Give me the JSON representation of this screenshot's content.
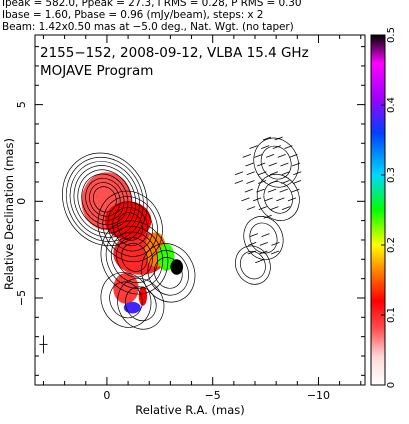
{
  "header": {
    "line1": "Ipeak = 582.0, Ppeak = 27.3, I RMS = 0.28, P RMS = 0.30",
    "line2": "Ibase = 1.60, Pbase = 0.96 (mJy/beam), steps: x 2",
    "line3": "Beam: 1.42x0.50 mas at −5.0 deg., Nat. Wgt. (no taper)"
  },
  "chart_data": {
    "type": "heatmap",
    "title": "2155−152, 2008-09-12, VLBA 15.4 GHz",
    "subtitle": "MOJAVE Program",
    "xlabel": "Relative R.A. (mas)",
    "ylabel": "Relative Declination (mas)",
    "xlim": [
      3.4,
      -12.2
    ],
    "ylim": [
      -9.5,
      8.6
    ],
    "x_ticks": [
      0,
      -5,
      -10
    ],
    "x_tick_labels": [
      "0",
      "−5",
      "−10"
    ],
    "y_ticks": [
      -5,
      0,
      5
    ],
    "y_tick_labels": [
      "−5",
      "0",
      "5"
    ],
    "colorbar": {
      "range": [
        0,
        0.5
      ],
      "ticks": [
        0,
        0.1,
        0.2,
        0.3,
        0.4,
        0.5
      ],
      "tick_labels": [
        "0",
        "0.1",
        "0.2",
        "0.3",
        "0.4",
        "0.5"
      ],
      "stops": [
        {
          "v": 0.0,
          "color": "#ffffff"
        },
        {
          "v": 0.04,
          "color": "#ffd8d8"
        },
        {
          "v": 0.08,
          "color": "#ff5050"
        },
        {
          "v": 0.12,
          "color": "#ff0000"
        },
        {
          "v": 0.16,
          "color": "#ff7a00"
        },
        {
          "v": 0.2,
          "color": "#ffff00"
        },
        {
          "v": 0.25,
          "color": "#00ff00"
        },
        {
          "v": 0.3,
          "color": "#00d8ff"
        },
        {
          "v": 0.36,
          "color": "#0040ff"
        },
        {
          "v": 0.41,
          "color": "#a000ff"
        },
        {
          "v": 0.46,
          "color": "#ff00ff"
        },
        {
          "v": 0.5,
          "color": "#000000"
        }
      ]
    },
    "emission_components": [
      {
        "x": 0.1,
        "y": 0.1,
        "flux": 1.0
      },
      {
        "x": -1.1,
        "y": -1.3,
        "flux": 0.5
      },
      {
        "x": -1.3,
        "y": -2.9,
        "flux": 0.55
      },
      {
        "x": -2.9,
        "y": -3.7,
        "flux": 0.3
      },
      {
        "x": -0.9,
        "y": -5.1,
        "flux": 0.25
      },
      {
        "x": -1.6,
        "y": -5.3,
        "flux": 0.2
      },
      {
        "x": -8.0,
        "y": 2.0,
        "flux": 0.18
      },
      {
        "x": -8.1,
        "y": 0.2,
        "flux": 0.15
      },
      {
        "x": -7.4,
        "y": -1.9,
        "flux": 0.12
      },
      {
        "x": -6.9,
        "y": -3.3,
        "flux": 0.08
      }
    ],
    "pol_fraction_regions": [
      {
        "x": 0.0,
        "y": 0.0,
        "rx": 1.2,
        "ry": 1.5,
        "value": 0.08
      },
      {
        "x": -1.6,
        "y": -2.7,
        "rx": 1.3,
        "ry": 1.1,
        "value": 0.1
      },
      {
        "x": -1.0,
        "y": -1.0,
        "rx": 1.1,
        "ry": 1.0,
        "value": 0.12
      },
      {
        "x": -2.3,
        "y": -2.5,
        "rx": 0.5,
        "ry": 0.9,
        "value": 0.16
      },
      {
        "x": -2.8,
        "y": -2.9,
        "rx": 0.4,
        "ry": 0.7,
        "value": 0.24
      },
      {
        "x": -3.3,
        "y": -3.4,
        "rx": 0.3,
        "ry": 0.4,
        "value": 0.5
      },
      {
        "x": -0.9,
        "y": -4.5,
        "rx": 0.6,
        "ry": 0.8,
        "value": 0.09
      },
      {
        "x": -1.2,
        "y": -5.5,
        "rx": 0.4,
        "ry": 0.3,
        "value": 0.38
      },
      {
        "x": -1.7,
        "y": -4.9,
        "rx": 0.2,
        "ry": 0.5,
        "value": 0.12
      }
    ],
    "evpa_regions": [
      {
        "x": -7.6,
        "y": 1.3,
        "rx": 1.4,
        "ry": 2.1
      },
      {
        "x": -7.2,
        "y": -2.4,
        "rx": 0.8,
        "ry": 0.7
      }
    ],
    "grid": false
  }
}
